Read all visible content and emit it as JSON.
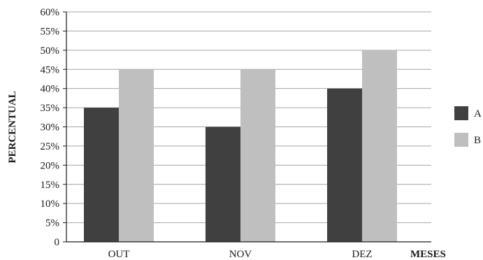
{
  "chart_data": {
    "type": "bar",
    "categories": [
      "OUT",
      "NOV",
      "DEZ"
    ],
    "series": [
      {
        "name": "A",
        "values": [
          35,
          30,
          40
        ],
        "color": "#404040"
      },
      {
        "name": "B",
        "values": [
          45,
          45,
          50
        ],
        "color": "#bfbfbf"
      }
    ],
    "xlabel": "MESES",
    "ylabel": "PERCENTUAL",
    "ylim": [
      0,
      60
    ],
    "ytick_step": 5,
    "ytick_suffix": "%",
    "ytick_labels": [
      "0",
      "5%",
      "10%",
      "15%",
      "20%",
      "25%",
      "30%",
      "35%",
      "40%",
      "45%",
      "50%",
      "55%",
      "60%"
    ],
    "grid": true,
    "legend": "right"
  }
}
